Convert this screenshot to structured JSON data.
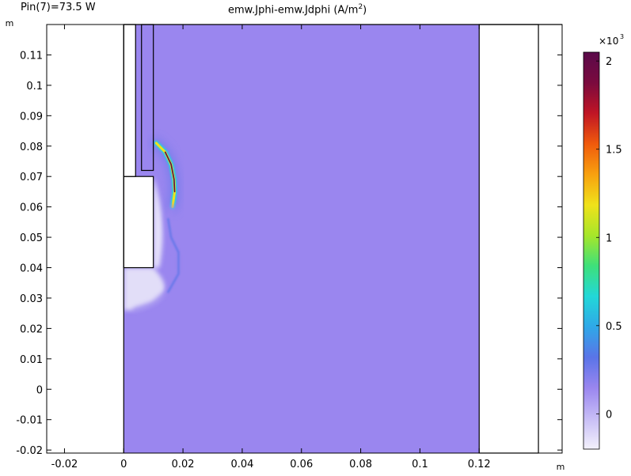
{
  "header": {
    "left_text": "Pin(7)=73.5 W",
    "title": "emw.Jphi-emw.Jdphi (A/m",
    "title_sup": "2",
    "title_tail": ")"
  },
  "chart_data": {
    "type": "heatmap",
    "title": "emw.Jphi-emw.Jdphi (A/m²)",
    "x_unit_label": "m",
    "y_unit_label": "m",
    "xlim": [
      -0.026,
      0.148
    ],
    "ylim": [
      -0.021,
      0.12
    ],
    "x_ticks": [
      -0.02,
      0,
      0.02,
      0.04,
      0.06,
      0.08,
      0.1,
      0.12
    ],
    "x_tick_labels": [
      "-0.02",
      "0",
      "0.02",
      "0.04",
      "0.06",
      "0.08",
      "0.1",
      "0.12"
    ],
    "y_ticks": [
      -0.02,
      -0.01,
      0,
      0.01,
      0.02,
      0.03,
      0.04,
      0.05,
      0.06,
      0.07,
      0.08,
      0.09,
      0.1,
      0.11
    ],
    "y_tick_labels": [
      "-0.02",
      "-0.01",
      "0",
      "0.01",
      "0.02",
      "0.03",
      "0.04",
      "0.05",
      "0.06",
      "0.07",
      "0.08",
      "0.09",
      "0.1",
      "0.11"
    ],
    "field_region": {
      "x": [
        0,
        0.12
      ],
      "y": [
        -0.021,
        0.12
      ],
      "base_value": 150
    },
    "geometry_outlines": [
      {
        "name": "left-block",
        "x": [
          0,
          0.01
        ],
        "y": [
          0.04,
          0.07
        ]
      },
      {
        "name": "upper-left-strip",
        "x": [
          0,
          0.004
        ],
        "y": [
          0.07,
          0.12
        ]
      },
      {
        "name": "inner-strip",
        "x": [
          0.006,
          0.01
        ],
        "y": [
          0.072,
          0.12
        ]
      },
      {
        "name": "right-outer-wall",
        "x": [
          0.12,
          0.14
        ],
        "y": [
          -0.021,
          0.12
        ]
      }
    ],
    "colorbar": {
      "min": -200,
      "max": 2050,
      "ticks": [
        0,
        500,
        1000,
        1500,
        2000
      ],
      "tick_labels": [
        "0",
        "0.5",
        "1",
        "1.5",
        "2"
      ],
      "multiplier_base": "×10",
      "multiplier_exp": "3",
      "colormap": [
        "#f3f1fb",
        "#c7bdf6",
        "#9a86ef",
        "#5a74e8",
        "#2fa8e8",
        "#22d8d8",
        "#3ee07a",
        "#a6e62a",
        "#f0e21a",
        "#f8a10f",
        "#f05a0c",
        "#c01525",
        "#7a0a3e",
        "#5a0a4a"
      ]
    },
    "hotspots": [
      {
        "name": "main-arc",
        "value": 2000,
        "points": [
          [
            0.011,
            0.081
          ],
          [
            0.014,
            0.078
          ],
          [
            0.016,
            0.074
          ],
          [
            0.017,
            0.069
          ],
          [
            0.0172,
            0.065
          ],
          [
            0.0165,
            0.06
          ]
        ]
      },
      {
        "name": "lower-arc",
        "value": 400,
        "points": [
          [
            0.0165,
            0.06
          ],
          [
            0.015,
            0.056
          ],
          [
            0.016,
            0.05
          ],
          [
            0.0185,
            0.045
          ],
          [
            0.0185,
            0.038
          ],
          [
            0.015,
            0.032
          ],
          [
            0.01,
            0.028
          ],
          [
            0.004,
            0.026
          ]
        ]
      }
    ]
  }
}
